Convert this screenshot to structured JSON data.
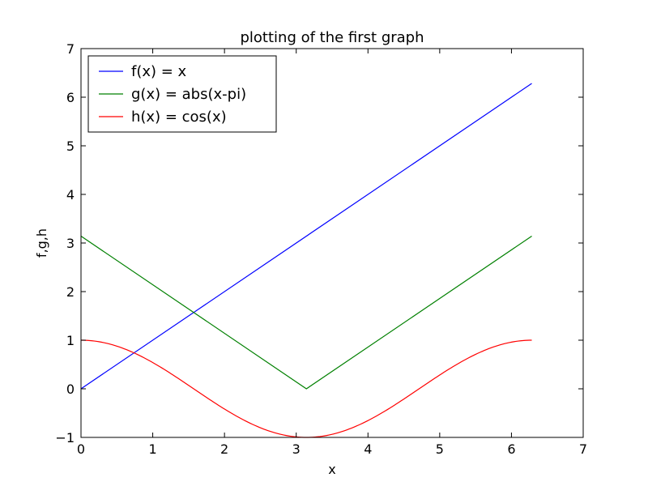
{
  "chart_data": {
    "type": "line",
    "title": "plotting of the first graph",
    "xlabel": "x",
    "ylabel": "f,g,h",
    "xlim": [
      0,
      7
    ],
    "ylim": [
      -1,
      7
    ],
    "xticks": [
      0,
      1,
      2,
      3,
      4,
      5,
      6,
      7
    ],
    "yticks": [
      -1,
      0,
      1,
      2,
      3,
      4,
      5,
      6,
      7
    ],
    "xtick_labels": [
      "0",
      "1",
      "2",
      "3",
      "4",
      "5",
      "6",
      "7"
    ],
    "ytick_labels": [
      "−1",
      "0",
      "1",
      "2",
      "3",
      "4",
      "5",
      "6",
      "7"
    ],
    "grid": false,
    "legend_position": "top-left",
    "x_domain": [
      0,
      6.2832
    ],
    "series": [
      {
        "name": "f(x) = x",
        "color": "#0000ff",
        "points": [
          [
            0,
            0
          ],
          [
            6.2832,
            6.2832
          ]
        ]
      },
      {
        "name": "g(x) = abs(x-pi)",
        "color": "#008000",
        "points": [
          [
            0,
            3.1416
          ],
          [
            3.1416,
            0
          ],
          [
            6.2832,
            3.1416
          ]
        ]
      },
      {
        "name": "h(x) = cos(x)",
        "color": "#ff0000",
        "function": "cos",
        "samples": 200
      }
    ]
  }
}
